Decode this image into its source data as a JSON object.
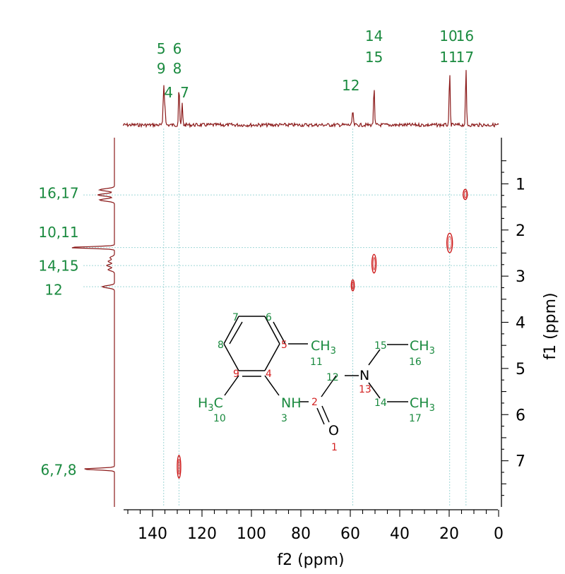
{
  "colors": {
    "spectrum": "#8b1a1a",
    "peak": "#cc1111",
    "label": "#1a8a3f",
    "atom_num_red": "#d32020",
    "guide": "#9fd6d6",
    "axis": "#000000"
  },
  "chart_data": {
    "type": "heatmap",
    "subtype": "2D NMR HSQC",
    "xlabel": "f2 (ppm)",
    "ylabel": "f1 (ppm)",
    "xlim": [
      152,
      0
    ],
    "ylim": [
      0,
      8
    ],
    "x_ticks": [
      140,
      120,
      100,
      80,
      60,
      40,
      20,
      0
    ],
    "y_ticks": [
      1,
      2,
      3,
      4,
      5,
      6,
      7
    ],
    "x_tick_labels": [
      "140",
      "120",
      "100",
      "80",
      "60",
      "40",
      "20",
      "0"
    ],
    "y_tick_labels": [
      "1",
      "2",
      "3",
      "4",
      "5",
      "6",
      "7"
    ],
    "top_peaks": [
      {
        "ppm": 135.5,
        "height": 0.66
      },
      {
        "ppm": 135.0,
        "height": 0.34
      },
      {
        "ppm": 129.3,
        "height": 0.66
      },
      {
        "ppm": 128.0,
        "height": 0.34
      },
      {
        "ppm": 59.0,
        "height": 0.25
      },
      {
        "ppm": 50.4,
        "height": 0.63
      },
      {
        "ppm": 19.8,
        "height": 0.86
      },
      {
        "ppm": 13.2,
        "height": 0.9
      }
    ],
    "top_labels": [
      {
        "line1": "5",
        "line2": "9",
        "ppm": 136.5
      },
      {
        "line1": "6",
        "line2": "8",
        "ppm": 130.0
      },
      {
        "line1": "4",
        "ppm": 133.5,
        "single": true
      },
      {
        "line1": "7",
        "ppm": 127.0,
        "single": true
      },
      {
        "line1": "12",
        "ppm": 59.8,
        "single": true
      },
      {
        "line1": "14",
        "line2": "15",
        "ppm": 50.4
      },
      {
        "line1": "10",
        "line2": "11",
        "ppm": 20.3
      },
      {
        "line1": "16",
        "line2": "17",
        "ppm": 13.6
      }
    ],
    "left_peaks": [
      {
        "ppm": 1.13,
        "height": 0.33
      },
      {
        "ppm": 1.24,
        "height": 0.37
      },
      {
        "ppm": 1.35,
        "height": 0.33
      },
      {
        "ppm": 2.38,
        "height": 1.0
      },
      {
        "ppm": 2.6,
        "height": 0.1
      },
      {
        "ppm": 2.68,
        "height": 0.14
      },
      {
        "ppm": 2.77,
        "height": 0.17
      },
      {
        "ppm": 2.86,
        "height": 0.14
      },
      {
        "ppm": 3.23,
        "height": 0.27
      },
      {
        "ppm": 7.18,
        "height": 0.7
      }
    ],
    "left_labels": [
      {
        "text": "16,17",
        "ppm": 1.2
      },
      {
        "text": "10,11",
        "ppm": 2.05
      },
      {
        "text": "14,15",
        "ppm": 2.78
      },
      {
        "text": "12",
        "ppm": 3.3
      },
      {
        "text": "6,7,8",
        "ppm": 7.2
      }
    ],
    "cross_peaks": [
      {
        "f2": 13.5,
        "f1": 1.23,
        "rx": 3,
        "ry": 1.2
      },
      {
        "f2": 19.8,
        "f1": 2.28,
        "rx": 4,
        "ry": 2.3
      },
      {
        "f2": 50.4,
        "f1": 2.73,
        "rx": 3,
        "ry": 2.2
      },
      {
        "f2": 59.0,
        "f1": 3.2,
        "rx": 2.2,
        "ry": 1.3
      },
      {
        "f2": 129.3,
        "f1": 7.13,
        "rx": 2.5,
        "ry": 2.7
      }
    ],
    "guides_vertical_ppm": [
      135.5,
      129.3,
      59.0,
      19.8,
      13.2
    ],
    "guides_horizontal_ppm": [
      1.24,
      2.38,
      2.77,
      3.23
    ]
  },
  "molecule": {
    "atoms": {
      "ch3_11": "CH",
      "sub_11": "3",
      "h3c_10": "H",
      "sub_10": "3",
      "c_10": "C",
      "nh": "NH",
      "n13": "N",
      "o1": "O",
      "ch3_16": "CH",
      "sub_16": "3",
      "ch3_17": "CH",
      "sub_17": "3"
    },
    "numbers": {
      "n1": "1",
      "n2": "2",
      "n3": "3",
      "n4": "4",
      "n5": "5",
      "n6": "6",
      "n7": "7",
      "n8": "8",
      "n9": "9",
      "n10": "10",
      "n11": "11",
      "n12": "12",
      "n13": "13",
      "n14": "14",
      "n15": "15",
      "n16": "16",
      "n17": "17"
    }
  }
}
